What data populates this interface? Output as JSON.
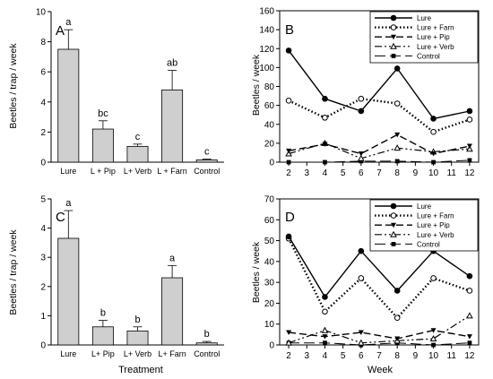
{
  "figure": {
    "bottom_labels": {
      "left": "Treatment",
      "right": "Week"
    }
  },
  "chart_data": [
    {
      "panel": "A",
      "type": "bar",
      "ylabel": "Beetles / trap / week",
      "ylim": [
        0,
        10
      ],
      "yticks": [
        0,
        2,
        4,
        6,
        8,
        10
      ],
      "categories": [
        "Lure",
        "L + Pip",
        "L+ Verb",
        "L + Farn",
        "Control"
      ],
      "values": [
        7.5,
        2.2,
        1.05,
        4.8,
        0.15
      ],
      "errors": [
        1.3,
        0.55,
        0.15,
        1.3,
        0.05
      ],
      "letters": [
        "a",
        "bc",
        "c",
        "ab",
        "c"
      ],
      "bar_color": "#cfcfcf"
    },
    {
      "panel": "B",
      "type": "line",
      "ylabel": "Beetles / week",
      "xlabel": "",
      "ylim": [
        0,
        160
      ],
      "yticks": [
        0,
        20,
        40,
        60,
        80,
        100,
        120,
        140,
        160
      ],
      "xlim": [
        1.5,
        12.5
      ],
      "xticks": [
        2,
        3,
        4,
        5,
        6,
        7,
        8,
        9,
        10,
        11,
        12
      ],
      "legend_position": "top-right",
      "series": [
        {
          "name": "Lure",
          "x": [
            2,
            4,
            6,
            8,
            10,
            12
          ],
          "values": [
            118,
            67,
            54,
            99,
            46,
            54
          ],
          "dash": "",
          "marker": "filled-circle",
          "width": 1.4
        },
        {
          "name": "Lure + Farn",
          "x": [
            2,
            4,
            6,
            8,
            10,
            12
          ],
          "values": [
            65,
            47,
            67,
            62,
            32,
            45
          ],
          "dash": "1.5 2.5",
          "marker": "open-circle",
          "width": 2.4
        },
        {
          "name": "Lure + Pip",
          "x": [
            2,
            4,
            6,
            8,
            10,
            12
          ],
          "values": [
            12,
            19,
            9,
            29,
            9,
            17
          ],
          "dash": "8 4",
          "marker": "filled-triangle-down",
          "width": 1.4
        },
        {
          "name": "Lure + Verb",
          "x": [
            2,
            4,
            6,
            8,
            10,
            12
          ],
          "values": [
            9,
            20,
            4,
            15,
            11,
            14
          ],
          "dash": "8 3 2 3 2 3",
          "marker": "open-triangle-up",
          "width": 1.2
        },
        {
          "name": "Control",
          "x": [
            2,
            4,
            6,
            8,
            10,
            12
          ],
          "values": [
            0,
            0,
            1,
            1,
            0,
            2
          ],
          "dash": "12 5",
          "marker": "filled-square",
          "width": 1
        }
      ]
    },
    {
      "panel": "C",
      "type": "bar",
      "ylabel": "Beetles / trap / week",
      "xlabel": "Treatment",
      "ylim": [
        0,
        5
      ],
      "yticks": [
        0,
        1,
        2,
        3,
        4,
        5
      ],
      "categories": [
        "Lure",
        "L+ Pip",
        "L+ Verb",
        "L+ Farn",
        "Control"
      ],
      "values": [
        3.65,
        0.62,
        0.48,
        2.3,
        0.07
      ],
      "errors": [
        0.95,
        0.22,
        0.14,
        0.42,
        0.05
      ],
      "letters": [
        "a",
        "b",
        "b",
        "a",
        "b"
      ],
      "bar_color": "#cfcfcf"
    },
    {
      "panel": "D",
      "type": "line",
      "ylabel": "Beetles / week",
      "xlabel": "Week",
      "ylim": [
        0,
        70
      ],
      "yticks": [
        0,
        10,
        20,
        30,
        40,
        50,
        60,
        70
      ],
      "xlim": [
        1.5,
        12.5
      ],
      "xticks": [
        2,
        3,
        4,
        5,
        6,
        7,
        8,
        9,
        10,
        11,
        12
      ],
      "legend_position": "top-right",
      "series": [
        {
          "name": "Lure",
          "x": [
            2,
            4,
            6,
            8,
            10,
            12
          ],
          "values": [
            52,
            23,
            45,
            26,
            45,
            33
          ],
          "dash": "",
          "marker": "filled-circle",
          "width": 1.4
        },
        {
          "name": "Lure + Farn",
          "x": [
            2,
            4,
            6,
            8,
            10,
            12
          ],
          "values": [
            51,
            16,
            32,
            13,
            32,
            26
          ],
          "dash": "1.5 2.5",
          "marker": "open-circle",
          "width": 2.4
        },
        {
          "name": "Lure + Pip",
          "x": [
            2,
            4,
            6,
            8,
            10,
            12
          ],
          "values": [
            6,
            4,
            6,
            3,
            7,
            4
          ],
          "dash": "8 4",
          "marker": "filled-triangle-down",
          "width": 1.4
        },
        {
          "name": "Lure + Verb",
          "x": [
            2,
            4,
            6,
            8,
            10,
            12
          ],
          "values": [
            1,
            7,
            1,
            2,
            3,
            14
          ],
          "dash": "8 3 2 3 2 3",
          "marker": "open-triangle-up",
          "width": 1.2
        },
        {
          "name": "Control",
          "x": [
            2,
            4,
            6,
            8,
            10,
            12
          ],
          "values": [
            1,
            1,
            0,
            1,
            0,
            1
          ],
          "dash": "12 5",
          "marker": "filled-square",
          "width": 1
        }
      ]
    }
  ]
}
